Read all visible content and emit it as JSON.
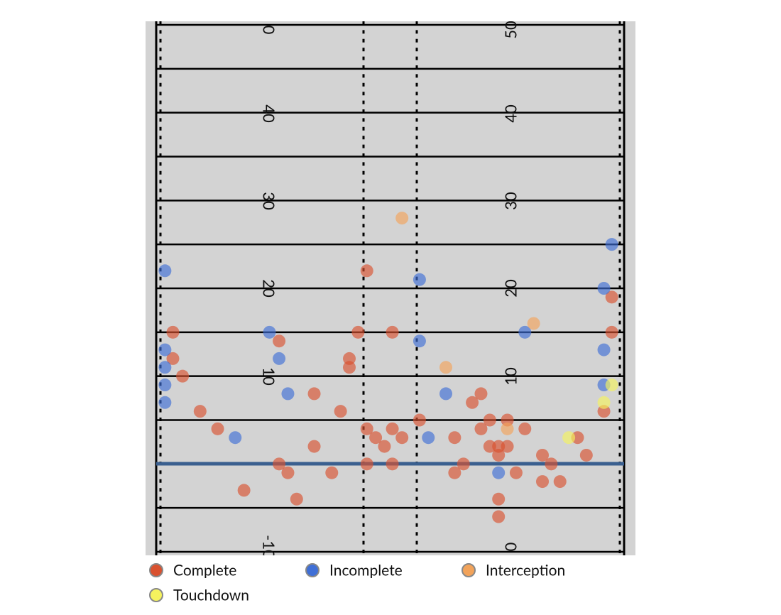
{
  "chart_data": {
    "type": "scatter",
    "xlim": [
      0,
      53.3
    ],
    "ylim": [
      -10,
      50
    ],
    "field_numbers_left": [
      "0",
      "40",
      "30",
      "20",
      "10",
      "-10"
    ],
    "field_numbers_right": [
      "50",
      "40",
      "30",
      "20",
      "10",
      "0"
    ],
    "series": [
      {
        "name": "Complete",
        "color": "#d9512f",
        "x": [
          24.0,
          51.9,
          1.9,
          23.0,
          26.9,
          51.9,
          14.0,
          1.9,
          22.0,
          22.0,
          3.0,
          18.0,
          37.0,
          36.0,
          5.0,
          21.0,
          51.0,
          30.0,
          38.0,
          40.0,
          7.0,
          24.0,
          26.9,
          37.0,
          42.0,
          25.0,
          28.0,
          34.0,
          48.0,
          18.0,
          26.0,
          38.0,
          39.0,
          40.0,
          39.0,
          44.0,
          49.0,
          14.0,
          24.0,
          26.9,
          35.0,
          45.0,
          15.0,
          20.0,
          34.0,
          41.0,
          44.0,
          46.0,
          10.0,
          16.0,
          39.0,
          39.0
        ],
        "values": [
          22.0,
          19.0,
          15.0,
          15.0,
          15.0,
          15.0,
          14.0,
          12.0,
          12.0,
          11.0,
          10.0,
          8.0,
          8.0,
          7.0,
          6.0,
          6.0,
          6.0,
          5.0,
          5.0,
          5.0,
          4.0,
          4.0,
          4.0,
          4.0,
          4.0,
          3.0,
          3.0,
          3.0,
          3.0,
          2.0,
          2.0,
          2.0,
          2.0,
          2.0,
          1.0,
          1.0,
          1.0,
          0,
          0,
          0,
          0,
          0,
          -1.0,
          -1.0,
          -1.0,
          -1.0,
          -2.0,
          -2.0,
          -3.0,
          -4.0,
          -4.0,
          -6.0
        ]
      },
      {
        "name": "Incomplete",
        "color": "#3f6fd6",
        "x": [
          1.0,
          51.9,
          30.0,
          51.0,
          12.9,
          30.0,
          42.0,
          1.0,
          51.0,
          14.0,
          1.0,
          1.0,
          51.0,
          15.0,
          33.0,
          1.0,
          9.0,
          31.0,
          39.0
        ],
        "values": [
          22.0,
          25.0,
          21.0,
          20.0,
          15.0,
          14.0,
          15.0,
          13.0,
          13.0,
          12.0,
          11.0,
          9.0,
          9.0,
          8.0,
          8.0,
          7.0,
          3.0,
          3.0,
          -1.0
        ]
      },
      {
        "name": "Interception",
        "color": "#f2a35a",
        "x": [
          28.0,
          43.0,
          33.0,
          40.0
        ],
        "values": [
          28.0,
          16.0,
          11.0,
          4.0
        ]
      },
      {
        "name": "Touchdown",
        "color": "#f5f25e",
        "x": [
          51.9,
          51.0,
          47.0
        ],
        "values": [
          9.0,
          7.0,
          3.0
        ]
      }
    ]
  }
}
